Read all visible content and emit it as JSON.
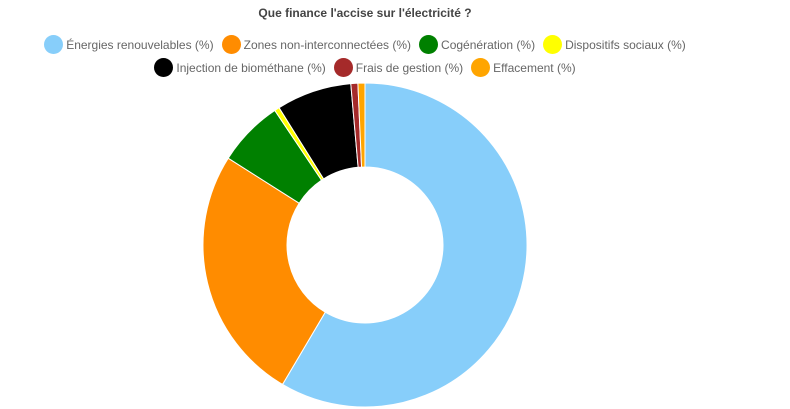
{
  "chart_data": {
    "type": "pie",
    "title": "Que finance l'accise sur l'électricité ?",
    "series": [
      {
        "name": "Énergies renouvelables (%)",
        "value": 58.5,
        "color": "#87CEFA"
      },
      {
        "name": "Zones non-interconnectées (%)",
        "value": 25.5,
        "color": "#FF8C00"
      },
      {
        "name": "Cogénération (%)",
        "value": 6.6,
        "color": "#008000"
      },
      {
        "name": "Dispositifs sociaux (%)",
        "value": 0.5,
        "color": "#FFFF00"
      },
      {
        "name": "Injection de biométhane (%)",
        "value": 7.5,
        "color": "#000000"
      },
      {
        "name": "Frais de gestion (%)",
        "value": 0.7,
        "color": "#A52A2A"
      },
      {
        "name": "Effacement (%)",
        "value": 0.7,
        "color": "#FFA500"
      }
    ],
    "legend_position": "top"
  }
}
